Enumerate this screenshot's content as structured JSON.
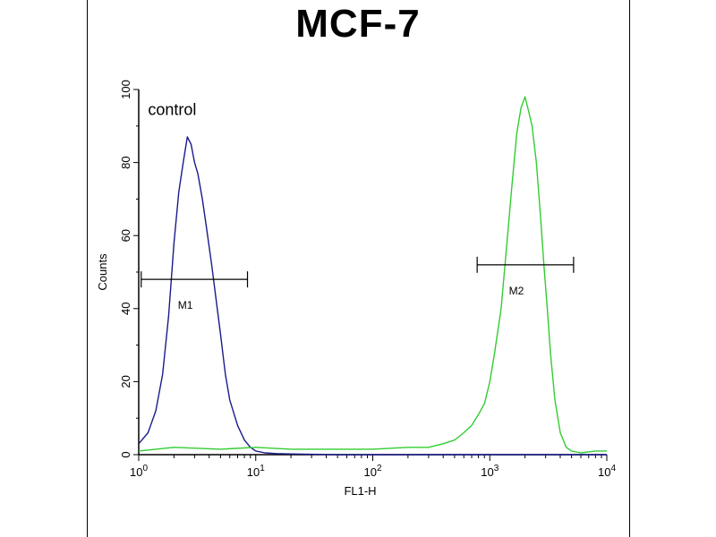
{
  "chart_data": {
    "type": "line",
    "title": "MCF-7",
    "xlabel": "FL1-H",
    "ylabel": "Counts",
    "xscale": "log",
    "xlim": [
      1,
      10000
    ],
    "ylim": [
      0,
      100
    ],
    "x_ticks": [
      {
        "value": 1,
        "base": "10",
        "exp": "0"
      },
      {
        "value": 10,
        "base": "10",
        "exp": "1"
      },
      {
        "value": 100,
        "base": "10",
        "exp": "2"
      },
      {
        "value": 1000,
        "base": "10",
        "exp": "3"
      },
      {
        "value": 10000,
        "base": "10",
        "exp": "4"
      }
    ],
    "y_ticks": [
      "0",
      "20",
      "40",
      "60",
      "80",
      "100"
    ],
    "grid": false,
    "series": [
      {
        "color": "#1a1a8c",
        "x": [
          1.0,
          1.2,
          1.4,
          1.6,
          1.8,
          2.0,
          2.2,
          2.4,
          2.6,
          2.8,
          3.0,
          3.2,
          3.5,
          3.8,
          4.2,
          4.6,
          5.0,
          5.5,
          6.0,
          7.0,
          8.0,
          9.0,
          10,
          12,
          15,
          20,
          30,
          50,
          100,
          1000,
          10000
        ],
        "y": [
          3,
          6,
          12,
          22,
          38,
          58,
          72,
          80,
          87,
          85,
          80,
          77,
          70,
          62,
          52,
          42,
          33,
          22,
          15,
          8,
          4,
          2,
          1,
          0.5,
          0.3,
          0.2,
          0.1,
          0,
          0,
          0,
          0
        ]
      },
      {
        "color": "#33cc33",
        "x": [
          1.0,
          2.0,
          5.0,
          10,
          20,
          50,
          100,
          200,
          300,
          400,
          500,
          600,
          700,
          800,
          900,
          1000,
          1100,
          1250,
          1400,
          1550,
          1700,
          1850,
          2000,
          2150,
          2300,
          2500,
          2700,
          2900,
          3100,
          3300,
          3600,
          4000,
          4500,
          5000,
          6000,
          8000,
          10000
        ],
        "y": [
          1,
          2,
          1.5,
          2,
          1.5,
          1.5,
          1.5,
          2,
          2,
          3,
          4,
          6,
          8,
          11,
          14,
          20,
          28,
          40,
          58,
          74,
          88,
          95,
          98,
          94,
          90,
          80,
          66,
          52,
          40,
          28,
          15,
          6,
          2,
          1,
          0.5,
          1,
          1
        ]
      }
    ],
    "annotations": [
      {
        "text": "control",
        "x": 1.2,
        "y": 93
      },
      {
        "text": "M1",
        "x_start": 1.05,
        "x_end": 8.5,
        "y": 48
      },
      {
        "text": "M2",
        "x_start": 780,
        "x_end": 5200,
        "y": 52
      }
    ]
  }
}
